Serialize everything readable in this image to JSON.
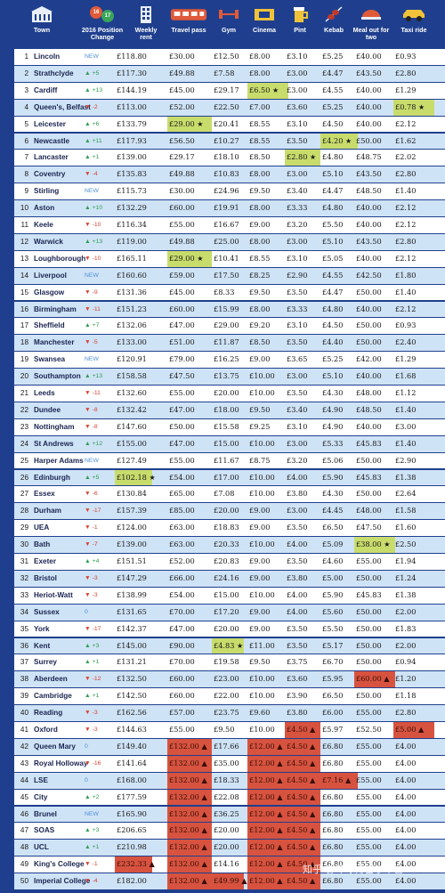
{
  "header": {
    "town": "Town",
    "position_change": "2016 Position Change",
    "rent": "Weekly rent",
    "travel": "Travel pass",
    "gym": "Gym",
    "cinema": "Cinema",
    "pint": "Pint",
    "kebab": "Kebab",
    "meal": "Meal out for two",
    "taxi": "Taxi ride",
    "badge_a": "16",
    "badge_b": "17"
  },
  "colors": {
    "alt_row": "#cfe3f6",
    "highlight_good": "#c8dc6c",
    "highlight_bad": "#d7533f",
    "up": "#2e9e4f",
    "down": "#d8412f",
    "new": "#4d8fd6"
  },
  "rows": [
    {
      "rank": "1",
      "town": "Lincoln",
      "chg": "NEW",
      "dir": "new",
      "rent": "£118.80",
      "travel": "£30.00",
      "gym": "£12.50",
      "cinema": "£8.00",
      "pint": "£3.10",
      "kebab": "£5.25",
      "meal": "£40.00",
      "taxi": "£0.93"
    },
    {
      "rank": "2",
      "town": "Strathclyde",
      "chg": "+5",
      "dir": "up",
      "rent": "£117.30",
      "travel": "£49.88",
      "gym": "£7.58",
      "cinema": "£8.00",
      "pint": "£3.00",
      "kebab": "£4.47",
      "meal": "£43.50",
      "taxi": "£2.80"
    },
    {
      "rank": "3",
      "town": "Cardiff",
      "chg": "+13",
      "dir": "up",
      "rent": "£144.19",
      "travel": "£45.00",
      "gym": "£29.17",
      "cinema": "£6.50 ★",
      "pint": "£3.00",
      "kebab": "£4.55",
      "meal": "£40.00",
      "taxi": "£1.29",
      "hl_cinema": "g"
    },
    {
      "rank": "4",
      "town": "Queen's, Belfast",
      "chg": "-2",
      "dir": "down",
      "rent": "£113.00",
      "travel": "£52.00",
      "gym": "£22.50",
      "cinema": "£7.00",
      "pint": "£3.60",
      "kebab": "£5.25",
      "meal": "£40.00",
      "taxi": "£0.78 ★",
      "hl_taxi": "g"
    },
    {
      "rank": "5",
      "town": "Leicester",
      "chg": "+6",
      "dir": "up",
      "rent": "£133.79",
      "travel": "£29.00 ★",
      "gym": "£20.41",
      "cinema": "£8.55",
      "pint": "£3.10",
      "kebab": "£4.50",
      "meal": "£40.00",
      "taxi": "£2.12",
      "hl_travel": "g"
    },
    {
      "rank": "6",
      "town": "Newcastle",
      "chg": "+11",
      "dir": "up",
      "rent": "£117.93",
      "travel": "£56.50",
      "gym": "£10.27",
      "cinema": "£8.55",
      "pint": "£3.50",
      "kebab": "£4.20 ★",
      "meal": "£50.00",
      "taxi": "£1.62",
      "hl_kebab": "g"
    },
    {
      "rank": "7",
      "town": "Lancaster",
      "chg": "+1",
      "dir": "up",
      "rent": "£139.00",
      "travel": "£29.17",
      "gym": "£18.10",
      "cinema": "£8.50",
      "pint": "£2.80 ★",
      "kebab": "£4.80",
      "meal": "£48.75",
      "taxi": "£2.02",
      "hl_pint": "g"
    },
    {
      "rank": "8",
      "town": "Coventry",
      "chg": "-4",
      "dir": "down",
      "rent": "£135.83",
      "travel": "£49.88",
      "gym": "£10.83",
      "cinema": "£8.00",
      "pint": "£3.00",
      "kebab": "£5.10",
      "meal": "£43.50",
      "taxi": "£2.80"
    },
    {
      "rank": "9",
      "town": "Stirling",
      "chg": "NEW",
      "dir": "new",
      "rent": "£115.73",
      "travel": "£30.00",
      "gym": "£24.96",
      "cinema": "£9.50",
      "pint": "£3.40",
      "kebab": "£4.47",
      "meal": "£48.50",
      "taxi": "£1.40"
    },
    {
      "rank": "10",
      "town": "Aston",
      "chg": "+10",
      "dir": "up",
      "rent": "£132.29",
      "travel": "£60.00",
      "gym": "£19.91",
      "cinema": "£8.00",
      "pint": "£3.33",
      "kebab": "£4.80",
      "meal": "£40.00",
      "taxi": "£2.12"
    },
    {
      "rank": "11",
      "town": "Keele",
      "chg": "-10",
      "dir": "down",
      "rent": "£116.34",
      "travel": "£55.00",
      "gym": "£16.67",
      "cinema": "£9.00",
      "pint": "£3.20",
      "kebab": "£5.50",
      "meal": "£40.00",
      "taxi": "£2.12"
    },
    {
      "rank": "12",
      "town": "Warwick",
      "chg": "+13",
      "dir": "up",
      "rent": "£119.00",
      "travel": "£49.88",
      "gym": "£25.00",
      "cinema": "£8.00",
      "pint": "£3.00",
      "kebab": "£5.10",
      "meal": "£43.50",
      "taxi": "£2.80"
    },
    {
      "rank": "13",
      "town": "Loughborough",
      "chg": "-10",
      "dir": "down",
      "rent": "£165.11",
      "travel": "£29.00 ★",
      "gym": "£10.41",
      "cinema": "£8.55",
      "pint": "£3.10",
      "kebab": "£5.05",
      "meal": "£40.00",
      "taxi": "£2.12",
      "hl_travel": "g"
    },
    {
      "rank": "14",
      "town": "Liverpool",
      "chg": "NEW",
      "dir": "new",
      "rent": "£160.60",
      "travel": "£59.00",
      "gym": "£17.50",
      "cinema": "£8.25",
      "pint": "£2.90",
      "kebab": "£4.55",
      "meal": "£42.50",
      "taxi": "£1.80"
    },
    {
      "rank": "15",
      "town": "Glasgow",
      "chg": "-9",
      "dir": "down",
      "rent": "£131.36",
      "travel": "£45.00",
      "gym": "£8.33",
      "cinema": "£9.50",
      "pint": "£3.50",
      "kebab": "£4.47",
      "meal": "£50.00",
      "taxi": "£1.40"
    },
    {
      "rank": "16",
      "town": "Birmingham",
      "chg": "-11",
      "dir": "down",
      "rent": "£151.23",
      "travel": "£60.00",
      "gym": "£15.99",
      "cinema": "£8.00",
      "pint": "£3.33",
      "kebab": "£4.80",
      "meal": "£40.00",
      "taxi": "£2.12"
    },
    {
      "rank": "17",
      "town": "Sheffield",
      "chg": "+7",
      "dir": "up",
      "rent": "£132.06",
      "travel": "£47.00",
      "gym": "£29.00",
      "cinema": "£9.20",
      "pint": "£3.10",
      "kebab": "£4.50",
      "meal": "£50.00",
      "taxi": "£0.93"
    },
    {
      "rank": "18",
      "town": "Manchester",
      "chg": "-5",
      "dir": "down",
      "rent": "£133.00",
      "travel": "£51.00",
      "gym": "£11.87",
      "cinema": "£8.50",
      "pint": "£3.50",
      "kebab": "£4.40",
      "meal": "£50.00",
      "taxi": "£2.40"
    },
    {
      "rank": "19",
      "town": "Swansea",
      "chg": "NEW",
      "dir": "new",
      "rent": "£120.91",
      "travel": "£79.00",
      "gym": "£16.25",
      "cinema": "£9.00",
      "pint": "£3.65",
      "kebab": "£5.25",
      "meal": "£42.00",
      "taxi": "£1.29"
    },
    {
      "rank": "20",
      "town": "Southampton",
      "chg": "+13",
      "dir": "up",
      "rent": "£158.58",
      "travel": "£47.50",
      "gym": "£13.75",
      "cinema": "£10.00",
      "pint": "£3.00",
      "kebab": "£5.10",
      "meal": "£40.00",
      "taxi": "£1.68"
    },
    {
      "rank": "21",
      "town": "Leeds",
      "chg": "-11",
      "dir": "down",
      "rent": "£132.60",
      "travel": "£55.00",
      "gym": "£20.00",
      "cinema": "£10.00",
      "pint": "£3.50",
      "kebab": "£4.30",
      "meal": "£48.00",
      "taxi": "£1.12"
    },
    {
      "rank": "22",
      "town": "Dundee",
      "chg": "-8",
      "dir": "down",
      "rent": "£132.42",
      "travel": "£47.00",
      "gym": "£18.00",
      "cinema": "£9.50",
      "pint": "£3.40",
      "kebab": "£4.90",
      "meal": "£48.50",
      "taxi": "£1.40"
    },
    {
      "rank": "23",
      "town": "Nottingham",
      "chg": "-8",
      "dir": "down",
      "rent": "£147.60",
      "travel": "£50.00",
      "gym": "£15.58",
      "cinema": "£9.25",
      "pint": "£3.10",
      "kebab": "£4.90",
      "meal": "£40.00",
      "taxi": "£3.00"
    },
    {
      "rank": "24",
      "town": "St Andrews",
      "chg": "+12",
      "dir": "up",
      "rent": "£155.00",
      "travel": "£47.00",
      "gym": "£15.00",
      "cinema": "£10.00",
      "pint": "£3.00",
      "kebab": "£5.33",
      "meal": "£45.83",
      "taxi": "£1.40"
    },
    {
      "rank": "25",
      "town": "Harper Adams",
      "chg": "NEW",
      "dir": "new",
      "rent": "£127.49",
      "travel": "£55.00",
      "gym": "£11.67",
      "cinema": "£8.75",
      "pint": "£3.20",
      "kebab": "£5.06",
      "meal": "£50.00",
      "taxi": "£2.90"
    },
    {
      "rank": "26",
      "town": "Edinburgh",
      "chg": "+5",
      "dir": "up",
      "rent": "£102.18 ★",
      "travel": "£54.00",
      "gym": "£17.00",
      "cinema": "£10.00",
      "pint": "£4.00",
      "kebab": "£5.90",
      "meal": "£45.83",
      "taxi": "£1.38",
      "hl_rent": "g"
    },
    {
      "rank": "27",
      "town": "Essex",
      "chg": "-6",
      "dir": "down",
      "rent": "£130.84",
      "travel": "£65.00",
      "gym": "£7.08",
      "cinema": "£10.00",
      "pint": "£3.80",
      "kebab": "£4.30",
      "meal": "£50.00",
      "taxi": "£2.64"
    },
    {
      "rank": "28",
      "town": "Durham",
      "chg": "-17",
      "dir": "down",
      "rent": "£157.39",
      "travel": "£85.00",
      "gym": "£20.00",
      "cinema": "£9.00",
      "pint": "£3.00",
      "kebab": "£4.45",
      "meal": "£48.00",
      "taxi": "£1.58"
    },
    {
      "rank": "29",
      "town": "UEA",
      "chg": "-1",
      "dir": "down",
      "rent": "£124.00",
      "travel": "£63.00",
      "gym": "£18.83",
      "cinema": "£9.00",
      "pint": "£3.50",
      "kebab": "£6.50",
      "meal": "£47.50",
      "taxi": "£1.60"
    },
    {
      "rank": "30",
      "town": "Bath",
      "chg": "-7",
      "dir": "down",
      "rent": "£139.00",
      "travel": "£63.00",
      "gym": "£20.33",
      "cinema": "£10.00",
      "pint": "£4.00",
      "kebab": "£5.09",
      "meal": "£38.00 ★",
      "taxi": "£2.50",
      "hl_meal": "g"
    },
    {
      "rank": "31",
      "town": "Exeter",
      "chg": "+4",
      "dir": "up",
      "rent": "£151.51",
      "travel": "£52.00",
      "gym": "£20.83",
      "cinema": "£9.00",
      "pint": "£3.50",
      "kebab": "£4.60",
      "meal": "£55.00",
      "taxi": "£1.94"
    },
    {
      "rank": "32",
      "town": "Bristol",
      "chg": "-3",
      "dir": "down",
      "rent": "£147.29",
      "travel": "£66.00",
      "gym": "£24.16",
      "cinema": "£9.00",
      "pint": "£3.80",
      "kebab": "£5.00",
      "meal": "£50.00",
      "taxi": "£1.24"
    },
    {
      "rank": "33",
      "town": "Heriot-Watt",
      "chg": "-3",
      "dir": "down",
      "rent": "£138.99",
      "travel": "£54.00",
      "gym": "£15.00",
      "cinema": "£10.00",
      "pint": "£4.00",
      "kebab": "£5.90",
      "meal": "£45.83",
      "taxi": "£1.38"
    },
    {
      "rank": "34",
      "town": "Sussex",
      "chg": "0",
      "dir": "new",
      "rent": "£131.65",
      "travel": "£70.00",
      "gym": "£17.20",
      "cinema": "£9.00",
      "pint": "£4.00",
      "kebab": "£5.60",
      "meal": "£50.00",
      "taxi": "£2.00"
    },
    {
      "rank": "35",
      "town": "York",
      "chg": "-17",
      "dir": "down",
      "rent": "£142.37",
      "travel": "£47.00",
      "gym": "£20.00",
      "cinema": "£9.00",
      "pint": "£3.50",
      "kebab": "£5.50",
      "meal": "£50.00",
      "taxi": "£1.83"
    },
    {
      "rank": "36",
      "town": "Kent",
      "chg": "+3",
      "dir": "up",
      "rent": "£145.00",
      "travel": "£90.00",
      "gym": "£4.83 ★",
      "cinema": "£11.00",
      "pint": "£3.50",
      "kebab": "£5.17",
      "meal": "£50.00",
      "taxi": "£2.00",
      "hl_gym": "g"
    },
    {
      "rank": "37",
      "town": "Surrey",
      "chg": "+1",
      "dir": "up",
      "rent": "£131.21",
      "travel": "£70.00",
      "gym": "£19.58",
      "cinema": "£9.50",
      "pint": "£3.75",
      "kebab": "£6.70",
      "meal": "£50.00",
      "taxi": "£0.94"
    },
    {
      "rank": "38",
      "town": "Aberdeen",
      "chg": "-12",
      "dir": "down",
      "rent": "£132.50",
      "travel": "£60.00",
      "gym": "£23.00",
      "cinema": "£10.00",
      "pint": "£3.60",
      "kebab": "£5.95",
      "meal": "£60.00 ▲",
      "taxi": "£1.20",
      "hl_meal": "r"
    },
    {
      "rank": "39",
      "town": "Cambridge",
      "chg": "+1",
      "dir": "up",
      "rent": "£142.50",
      "travel": "£60.00",
      "gym": "£22.00",
      "cinema": "£10.00",
      "pint": "£3.90",
      "kebab": "£6.50",
      "meal": "£50.00",
      "taxi": "£1.18"
    },
    {
      "rank": "40",
      "town": "Reading",
      "chg": "-3",
      "dir": "down",
      "rent": "£162.56",
      "travel": "£57.00",
      "gym": "£23.75",
      "cinema": "£9.60",
      "pint": "£3.80",
      "kebab": "£6.00",
      "meal": "£55.00",
      "taxi": "£2.80"
    },
    {
      "rank": "41",
      "town": "Oxford",
      "chg": "-3",
      "dir": "down",
      "rent": "£144.63",
      "travel": "£55.00",
      "gym": "£9.50",
      "cinema": "£10.00",
      "pint": "£4.50 ▲",
      "kebab": "£5.97",
      "meal": "£52.50",
      "taxi": "£5.00 ▲",
      "hl_pint": "r",
      "hl_taxi": "r"
    },
    {
      "rank": "42",
      "town": "Queen Mary",
      "chg": "0",
      "dir": "new",
      "rent": "£149.40",
      "travel": "£132.00 ▲",
      "gym": "£17.66",
      "cinema": "£12.00 ▲",
      "pint": "£4.50 ▲",
      "kebab": "£6.80",
      "meal": "£55.00",
      "taxi": "£4.00",
      "hl_travel": "r",
      "hl_cinema": "r",
      "hl_pint": "r"
    },
    {
      "rank": "43",
      "town": "Royal Holloway",
      "chg": "-16",
      "dir": "down",
      "rent": "£141.64",
      "travel": "£132.00 ▲",
      "gym": "£35.00",
      "cinema": "£12.00 ▲",
      "pint": "£4.50 ▲",
      "kebab": "£6.80",
      "meal": "£55.00",
      "taxi": "£4.00",
      "hl_travel": "r",
      "hl_cinema": "r",
      "hl_pint": "r"
    },
    {
      "rank": "44",
      "town": "LSE",
      "chg": "0",
      "dir": "new",
      "rent": "£168.00",
      "travel": "£132.00 ▲",
      "gym": "£18.33",
      "cinema": "£12.00 ▲",
      "pint": "£4.50 ▲",
      "kebab": "£7.16 ▲",
      "meal": "£55.00",
      "taxi": "£4.00",
      "hl_travel": "r",
      "hl_cinema": "r",
      "hl_pint": "r",
      "hl_kebab": "r"
    },
    {
      "rank": "45",
      "town": "City",
      "chg": "+2",
      "dir": "up",
      "rent": "£177.59",
      "travel": "£132.00 ▲",
      "gym": "£22.08",
      "cinema": "£12.00 ▲",
      "pint": "£4.50 ▲",
      "kebab": "£6.80",
      "meal": "£55.00",
      "taxi": "£4.00",
      "hl_travel": "r",
      "hl_cinema": "r",
      "hl_pint": "r"
    },
    {
      "rank": "46",
      "town": "Brunel",
      "chg": "NEW",
      "dir": "new",
      "rent": "£165.90",
      "travel": "£132.00 ▲",
      "gym": "£36.25",
      "cinema": "£12.00 ▲",
      "pint": "£4.50 ▲",
      "kebab": "£6.80",
      "meal": "£55.00",
      "taxi": "£4.00",
      "hl_travel": "r",
      "hl_cinema": "r",
      "hl_pint": "r"
    },
    {
      "rank": "47",
      "town": "SOAS",
      "chg": "+3",
      "dir": "up",
      "rent": "£206.65",
      "travel": "£132.00 ▲",
      "gym": "£20.00",
      "cinema": "£12.00 ▲",
      "pint": "£4.50 ▲",
      "kebab": "£6.80",
      "meal": "£55.00",
      "taxi": "£4.00",
      "hl_travel": "r",
      "hl_cinema": "r",
      "hl_pint": "r"
    },
    {
      "rank": "48",
      "town": "UCL",
      "chg": "+1",
      "dir": "up",
      "rent": "£210.98",
      "travel": "£132.00 ▲",
      "gym": "£20.00",
      "cinema": "£12.00 ▲",
      "pint": "£4.50 ▲",
      "kebab": "£6.80",
      "meal": "£55.00",
      "taxi": "£4.00",
      "hl_travel": "r",
      "hl_cinema": "r",
      "hl_pint": "r"
    },
    {
      "rank": "49",
      "town": "King's College",
      "chg": "-1",
      "dir": "down",
      "rent": "£232.33 ▲",
      "travel": "£132.00 ▲",
      "gym": "£14.16",
      "cinema": "£12.00 ▲",
      "pint": "£4.50 ▲",
      "kebab": "£6.80",
      "meal": "£55.00",
      "taxi": "£4.00",
      "hl_rent": "r",
      "hl_travel": "r",
      "hl_cinema": "r",
      "hl_pint": "r"
    },
    {
      "rank": "50",
      "town": "Imperial College",
      "chg": "-4",
      "dir": "down",
      "rent": "£182.00",
      "travel": "£132.00 ▲",
      "gym": "£49.99 ▲",
      "cinema": "£12.00 ▲",
      "pint": "£4.50 ▲",
      "kebab": "£6.80",
      "meal": "£55.00",
      "taxi": "£4.00",
      "hl_travel": "r",
      "hl_gym": "r",
      "hl_cinema": "r",
      "hl_pint": "r"
    }
  ],
  "watermark": "知乎 @环球博留学平台"
}
